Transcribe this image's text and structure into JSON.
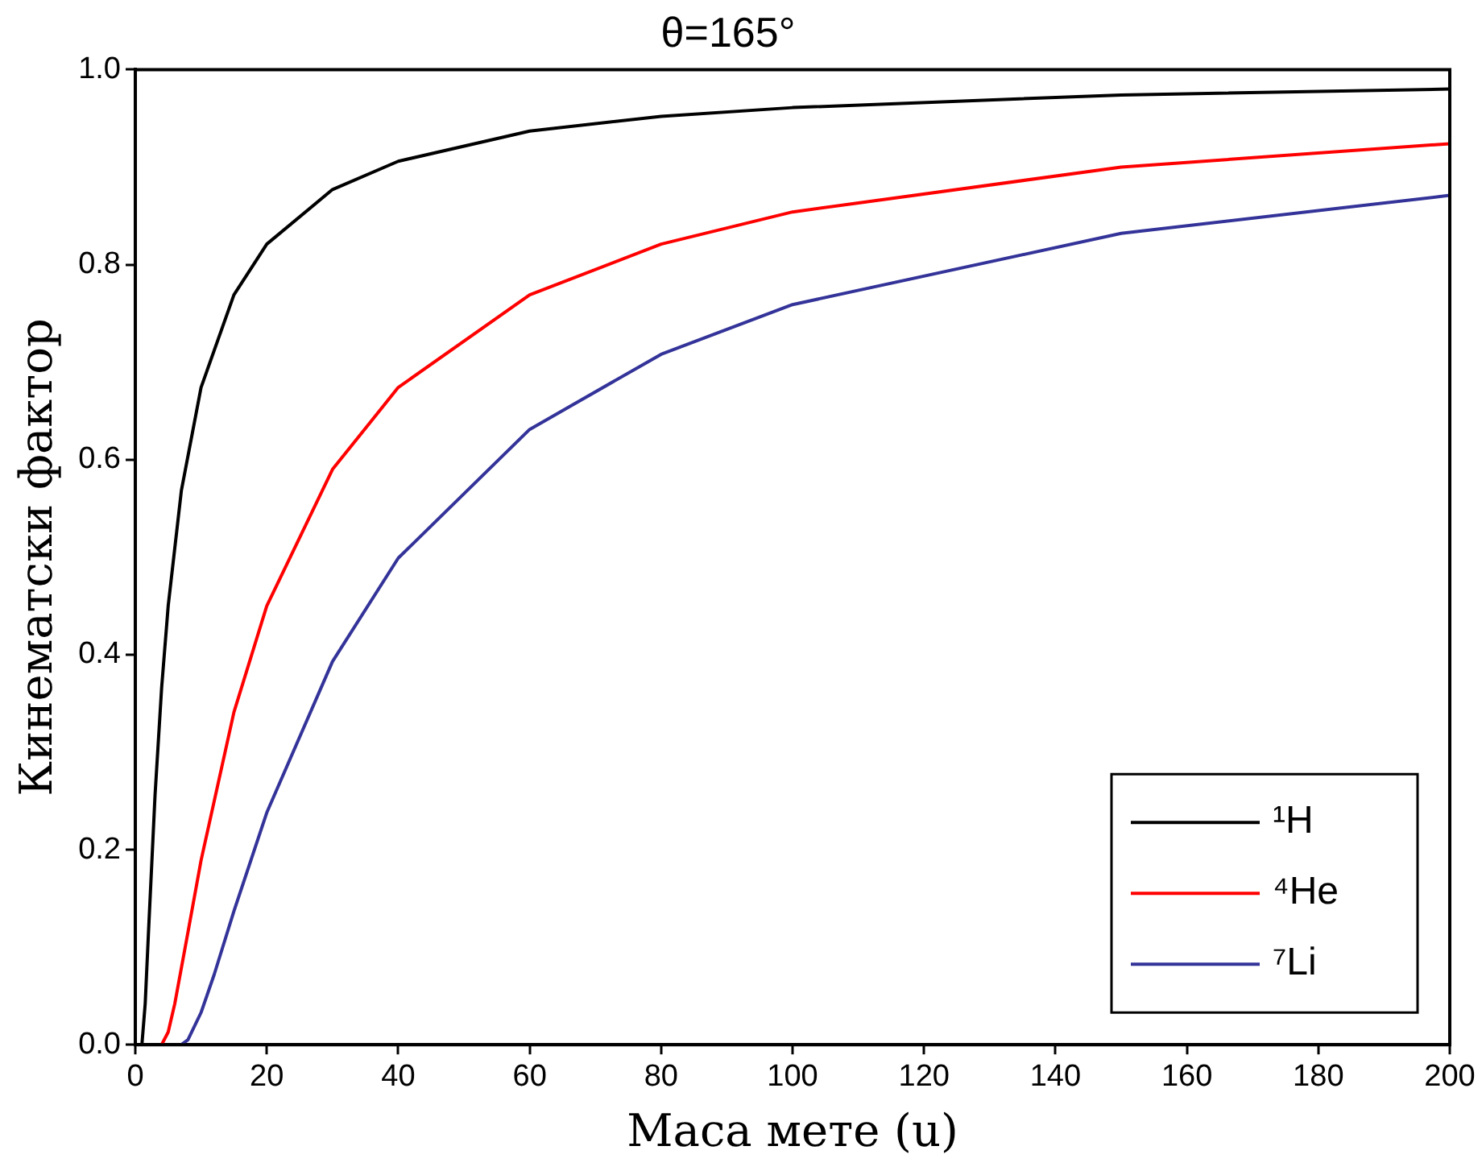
{
  "chart_data": {
    "type": "line",
    "title": "θ=165°",
    "xlabel": "Маса мете (u)",
    "ylabel": "Кинематски фактор",
    "xlim": [
      0,
      200
    ],
    "xticks": [
      0,
      20,
      40,
      60,
      80,
      100,
      120,
      140,
      160,
      180,
      200
    ],
    "ylim": [
      0,
      1
    ],
    "yticks": [
      {
        "value": 0,
        "label": "0.0"
      },
      {
        "value": 0.2,
        "label": "0.2"
      },
      {
        "value": 0.4,
        "label": "0.4"
      },
      {
        "value": 0.6,
        "label": "0.6"
      },
      {
        "value": 0.8,
        "label": "0.8"
      },
      {
        "value": 1,
        "label": "1.0"
      }
    ],
    "grid": false,
    "legend": "bottom right",
    "marker": "none",
    "line_style": "solid",
    "series": [
      {
        "name": "¹H",
        "color": "#000000",
        "x": [
          1,
          1.5,
          2,
          3,
          4,
          5,
          7,
          10,
          15,
          20,
          30,
          40,
          60,
          80,
          100,
          150,
          200
        ],
        "values": [
          0,
          0.042,
          0.115,
          0.256,
          0.366,
          0.45,
          0.568,
          0.674,
          0.769,
          0.821,
          0.877,
          0.906,
          0.937,
          0.952,
          0.961,
          0.974,
          0.98
        ]
      },
      {
        "name": "⁴He",
        "color": "#ff0000",
        "x": [
          4,
          5,
          6,
          8,
          10,
          15,
          20,
          30,
          40,
          60,
          80,
          100,
          150,
          200
        ],
        "values": [
          0,
          0.013,
          0.042,
          0.115,
          0.189,
          0.341,
          0.45,
          0.59,
          0.674,
          0.769,
          0.821,
          0.854,
          0.9,
          0.924
        ]
      },
      {
        "name": "⁷Li",
        "color": "#333399",
        "x": [
          7,
          8,
          10,
          12,
          15,
          20,
          30,
          40,
          60,
          80,
          100,
          150,
          200
        ],
        "values": [
          0,
          0.005,
          0.033,
          0.072,
          0.137,
          0.238,
          0.393,
          0.499,
          0.631,
          0.708,
          0.759,
          0.832,
          0.871
        ]
      }
    ]
  }
}
